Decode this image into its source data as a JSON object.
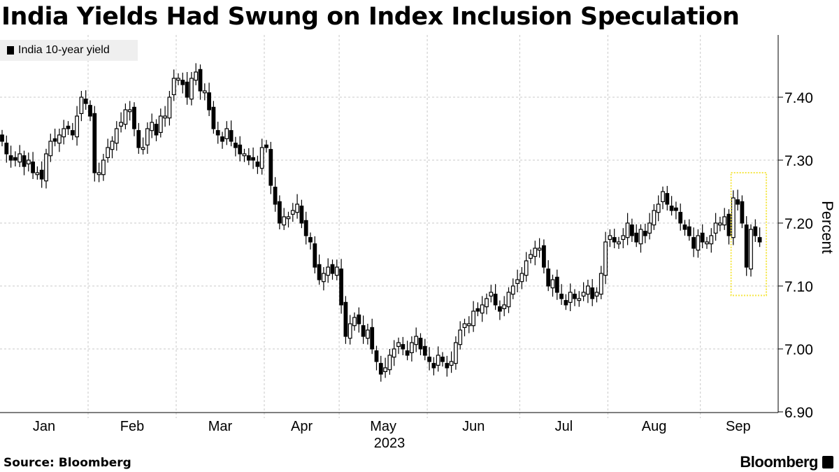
{
  "title": "India Yields Had Swung on Index Inclusion Speculation",
  "source": "Source: Bloomberg",
  "logo": "Bloomberg",
  "chart_data": {
    "type": "candlestick",
    "title": "India Yields Had Swung on Index Inclusion Speculation",
    "legend": [
      "India 10-year yield"
    ],
    "legend_placement": "top-left",
    "ylabel": "Percent",
    "xlabel": "2023",
    "ylim": [
      6.88,
      7.49
    ],
    "yticks": [
      6.9,
      7.0,
      7.1,
      7.2,
      7.3,
      7.4
    ],
    "ytick_labels": [
      "6.90",
      "7.00",
      "7.10",
      "7.20",
      "7.30",
      "7.40"
    ],
    "months": [
      "Jan",
      "Feb",
      "Mar",
      "Apr",
      "May",
      "Jun",
      "Jul",
      "Aug",
      "Sep"
    ],
    "month_start_index": [
      0,
      20,
      40,
      60,
      77,
      97,
      118,
      138,
      159
    ],
    "grid": true,
    "close": [
      7.33,
      7.31,
      7.3,
      7.3,
      7.31,
      7.29,
      7.3,
      7.28,
      7.28,
      7.27,
      7.31,
      7.33,
      7.33,
      7.34,
      7.35,
      7.35,
      7.34,
      7.37,
      7.4,
      7.39,
      7.37,
      7.28,
      7.28,
      7.3,
      7.32,
      7.33,
      7.35,
      7.36,
      7.38,
      7.38,
      7.35,
      7.32,
      7.32,
      7.35,
      7.36,
      7.34,
      7.37,
      7.37,
      7.4,
      7.43,
      7.43,
      7.42,
      7.4,
      7.43,
      7.44,
      7.41,
      7.41,
      7.38,
      7.35,
      7.34,
      7.33,
      7.35,
      7.33,
      7.32,
      7.31,
      7.31,
      7.3,
      7.3,
      7.29,
      7.32,
      7.32,
      7.26,
      7.23,
      7.2,
      7.21,
      7.21,
      7.22,
      7.23,
      7.2,
      7.18,
      7.17,
      7.13,
      7.11,
      7.12,
      7.13,
      7.12,
      7.13,
      7.07,
      7.02,
      7.04,
      7.05,
      7.04,
      7.02,
      7.03,
      7.0,
      6.98,
      6.96,
      6.97,
      6.99,
      7.0,
      7.01,
      7.0,
      6.99,
      7.01,
      7.02,
      7.0,
      6.99,
      6.98,
      6.97,
      6.99,
      6.98,
      6.97,
      6.98,
      7.01,
      7.03,
      7.04,
      7.04,
      7.06,
      7.06,
      7.07,
      7.08,
      7.09,
      7.07,
      7.06,
      7.07,
      7.09,
      7.1,
      7.11,
      7.12,
      7.14,
      7.15,
      7.16,
      7.16,
      7.13,
      7.1,
      7.11,
      7.09,
      7.08,
      7.07,
      7.09,
      7.08,
      7.08,
      7.09,
      7.1,
      7.08,
      7.09,
      7.12,
      7.17,
      7.18,
      7.17,
      7.17,
      7.18,
      7.2,
      7.18,
      7.17,
      7.19,
      7.18,
      7.2,
      7.22,
      7.23,
      7.25,
      7.23,
      7.22,
      7.22,
      7.2,
      7.19,
      7.18,
      7.16,
      7.18,
      7.17,
      7.17,
      7.18,
      7.2,
      7.2,
      7.21,
      7.18,
      7.24,
      7.23,
      7.2,
      7.13,
      7.19,
      7.18,
      7.17
    ],
    "highlight": {
      "start_index": 165.5,
      "end_index": 173.5,
      "y_top": 7.28,
      "y_bottom": 7.085,
      "color": "#f5e642"
    },
    "colors": {
      "up": "#ffffff",
      "down": "#000000",
      "grid": "#c8c8c8"
    }
  }
}
